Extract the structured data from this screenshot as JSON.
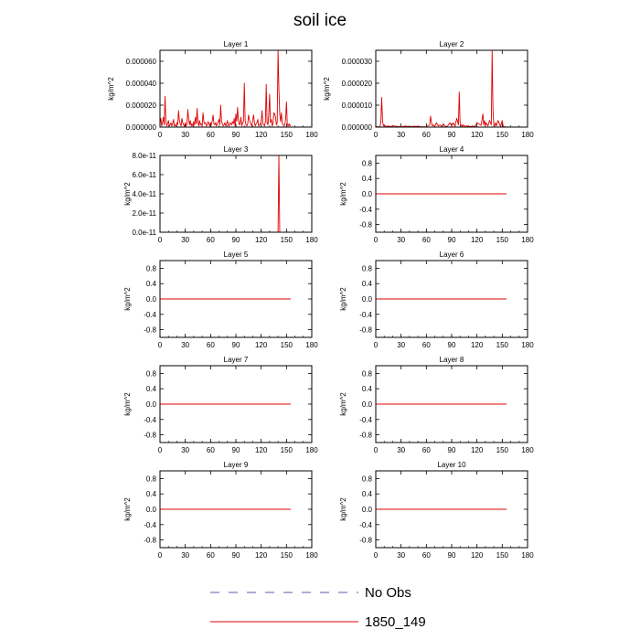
{
  "figure_title": "soil ice",
  "colors": {
    "series_model": "#e00000",
    "series_obs": "#5a5ab4",
    "axis": "#000000"
  },
  "legend": {
    "entries": [
      {
        "label": "No Obs",
        "style": "dashed",
        "color": "#5a5ab4"
      },
      {
        "label": "1850_149",
        "style": "solid",
        "color": "#e00000"
      }
    ]
  },
  "chart_data": [
    {
      "type": "line",
      "title": "Layer 1",
      "ylabel": "kg/m^2",
      "xlim": [
        0,
        180
      ],
      "xticks": [
        "0",
        "30",
        "60",
        "90",
        "120",
        "150",
        "180"
      ],
      "ylim": [
        0,
        7e-05
      ],
      "yticks": [
        0,
        2e-05,
        4e-05,
        6e-05
      ],
      "ytick_labels": [
        "0.000000",
        "0.000020",
        "0.000040",
        "0.000060"
      ],
      "series": [
        {
          "name": "1850_149",
          "x": [
            0,
            1,
            2,
            3,
            4,
            5,
            6,
            7,
            8,
            9,
            10,
            11,
            12,
            13,
            14,
            15,
            16,
            17,
            18,
            19,
            20,
            21,
            22,
            23,
            24,
            25,
            26,
            27,
            28,
            29,
            30,
            31,
            32,
            33,
            34,
            35,
            36,
            37,
            38,
            39,
            40,
            41,
            42,
            43,
            44,
            45,
            46,
            47,
            48,
            49,
            50,
            51,
            52,
            53,
            54,
            55,
            56,
            57,
            58,
            59,
            60,
            61,
            62,
            63,
            64,
            65,
            66,
            67,
            68,
            69,
            70,
            71,
            72,
            73,
            74,
            75,
            76,
            77,
            78,
            79,
            80,
            81,
            82,
            83,
            84,
            85,
            86,
            87,
            88,
            89,
            90,
            91,
            92,
            93,
            94,
            95,
            96,
            97,
            98,
            99,
            100,
            101,
            102,
            103,
            104,
            105,
            106,
            107,
            108,
            109,
            110,
            111,
            112,
            113,
            114,
            115,
            116,
            117,
            118,
            119,
            120,
            121,
            122,
            123,
            124,
            125,
            126,
            127,
            128,
            129,
            130,
            131,
            132,
            133,
            134,
            135,
            136,
            137,
            138,
            139,
            140,
            141,
            142,
            143,
            144,
            145,
            146,
            147,
            148,
            149,
            150,
            151,
            152,
            153,
            154,
            155
          ],
          "values": [
            3e-06,
            8e-06,
            1e-06,
            4e-06,
            9e-06,
            2e-06,
            2.8e-05,
            5e-06,
            1e-06,
            3e-06,
            6e-06,
            1e-06,
            2e-06,
            4e-06,
            1e-06,
            3e-06,
            7e-06,
            1e-06,
            2e-06,
            1e-06,
            4e-06,
            2e-06,
            1.5e-05,
            6e-06,
            3e-06,
            1e-06,
            8e-06,
            4e-06,
            2e-06,
            1e-06,
            4e-06,
            1e-06,
            3e-06,
            1.6e-05,
            7e-06,
            2e-06,
            6e-06,
            1e-06,
            3e-06,
            1e-06,
            5e-06,
            2e-06,
            9e-06,
            3e-06,
            1.7e-05,
            4e-06,
            1e-06,
            6e-06,
            2e-06,
            3e-06,
            1e-06,
            1.3e-05,
            5e-06,
            3e-06,
            4e-06,
            1e-06,
            2e-06,
            5e-06,
            3e-06,
            1e-06,
            4e-06,
            2e-06,
            6e-06,
            1.1e-05,
            3e-06,
            2e-06,
            4e-06,
            1e-06,
            3e-06,
            5e-06,
            7e-06,
            2e-06,
            2e-05,
            5e-06,
            3e-06,
            1e-06,
            2e-06,
            4e-06,
            1e-06,
            3e-06,
            6e-06,
            2e-06,
            1e-06,
            4e-06,
            3e-06,
            2e-06,
            5e-06,
            3e-06,
            8e-06,
            1e-06,
            1.2e-05,
            5e-06,
            1.8e-05,
            7e-06,
            2e-06,
            3e-06,
            9e-06,
            1e-06,
            4e-06,
            5e-06,
            4e-05,
            6e-06,
            2e-06,
            1e-06,
            3e-06,
            1.1e-05,
            7e-06,
            4e-06,
            2e-06,
            1e-06,
            7e-06,
            1.1e-05,
            4e-06,
            1e-06,
            3e-06,
            4e-06,
            7e-06,
            1e-06,
            2e-06,
            3e-06,
            5e-06,
            1.5e-05,
            3e-06,
            2e-06,
            1e-06,
            5e-06,
            3.9e-05,
            4e-06,
            2e-06,
            1.1e-05,
            3e-05,
            4e-06,
            7e-06,
            1e-06,
            3e-06,
            1.3e-05,
            1.2e-05,
            9e-06,
            2e-06,
            4e-06,
            7e-05,
            3.5e-05,
            1.2e-05,
            5e-06,
            1.3e-05,
            4e-06,
            2e-06,
            1e-06,
            2e-06,
            7e-06,
            2.3e-05,
            2e-06,
            1e-06,
            3e-06,
            1e-06,
            2e-06
          ]
        }
      ]
    },
    {
      "type": "line",
      "title": "Layer 2",
      "ylabel": "kg/m^2",
      "xlim": [
        0,
        180
      ],
      "xticks": [
        "0",
        "30",
        "60",
        "90",
        "120",
        "150",
        "180"
      ],
      "ylim": [
        0,
        3.5e-05
      ],
      "yticks": [
        0,
        1e-05,
        2e-05,
        3e-05
      ],
      "ytick_labels": [
        "0.000000",
        "0.000010",
        "0.000020",
        "0.000030"
      ],
      "series": [
        {
          "name": "1850_149",
          "x": [
            0,
            3,
            5,
            6,
            7,
            8,
            9,
            10,
            12,
            15,
            18,
            20,
            25,
            30,
            35,
            40,
            45,
            50,
            55,
            60,
            64,
            65,
            66,
            67,
            68,
            70,
            72,
            74,
            76,
            78,
            80,
            82,
            84,
            86,
            88,
            90,
            92,
            94,
            96,
            98,
            99,
            100,
            101,
            102,
            103,
            104,
            106,
            108,
            110,
            112,
            115,
            118,
            120,
            125,
            127,
            128,
            129,
            130,
            131,
            133,
            135,
            137,
            138,
            139,
            140,
            141,
            142,
            143,
            145,
            148,
            150,
            151,
            152,
            153,
            155
          ],
          "values": [
            1e-07,
            2e-07,
            1e-07,
            2e-06,
            1.35e-05,
            3e-06,
            5e-07,
            1e-06,
            3e-07,
            5e-07,
            2e-07,
            6e-07,
            3e-07,
            1e-07,
            5e-07,
            2e-07,
            4e-07,
            3e-07,
            1e-07,
            2e-07,
            1e-06,
            5e-06,
            2e-06,
            5e-07,
            1e-06,
            3e-07,
            2e-06,
            5e-07,
            1e-06,
            3e-07,
            1.5e-06,
            5e-07,
            2e-07,
            8e-07,
            2e-06,
            5e-07,
            2e-06,
            3e-07,
            4e-06,
            1e-06,
            1.6e-05,
            2e-06,
            5e-07,
            1e-06,
            2e-07,
            1e-06,
            3e-07,
            6e-07,
            3e-07,
            2e-07,
            5e-07,
            3e-07,
            2e-06,
            8e-07,
            6e-06,
            1e-06,
            3e-06,
            5e-07,
            2e-06,
            5e-07,
            3e-06,
            1e-06,
            3.5e-05,
            8e-06,
            1e-06,
            5e-07,
            2e-06,
            5e-07,
            3e-06,
            3e-07,
            3e-06,
            5e-07,
            2e-07,
            1e-07,
            1e-07
          ]
        }
      ]
    },
    {
      "type": "line",
      "title": "Layer 3",
      "ylabel": "kg/m^2",
      "xlim": [
        0,
        180
      ],
      "xticks": [
        "0",
        "30",
        "60",
        "90",
        "120",
        "150",
        "180"
      ],
      "ylim": [
        0,
        8e-11
      ],
      "yticks": [
        0,
        2e-11,
        4e-11,
        6e-11,
        8e-11
      ],
      "ytick_labels": [
        "0.0e-11",
        "2.0e-11",
        "4.0e-11",
        "6.0e-11",
        "8.0e-11"
      ],
      "series": [
        {
          "name": "1850_149",
          "x": [
            0,
            139,
            140,
            141,
            142,
            155
          ],
          "values": [
            0,
            0,
            0,
            8e-11,
            0,
            0
          ]
        }
      ]
    },
    {
      "type": "line",
      "title": "Layer 4",
      "ylabel": "kg/m^2",
      "xlim": [
        0,
        180
      ],
      "xticks": [
        "0",
        "30",
        "60",
        "90",
        "120",
        "150",
        "180"
      ],
      "ylim": [
        -1,
        1
      ],
      "yticks": [
        -0.8,
        -0.4,
        0.0,
        0.4,
        0.8
      ],
      "ytick_labels": [
        "-0.8",
        "-0.4",
        "0.0",
        "0.4",
        "0.8"
      ],
      "series": [
        {
          "name": "1850_149",
          "x": [
            0,
            155
          ],
          "values": [
            0,
            0
          ]
        }
      ]
    },
    {
      "type": "line",
      "title": "Layer 5",
      "ylabel": "kg/m^2",
      "xlim": [
        0,
        180
      ],
      "xticks": [
        "0",
        "30",
        "60",
        "90",
        "120",
        "150",
        "180"
      ],
      "ylim": [
        -1,
        1
      ],
      "yticks": [
        -0.8,
        -0.4,
        0.0,
        0.4,
        0.8
      ],
      "ytick_labels": [
        "-0.8",
        "-0.4",
        "0.0",
        "0.4",
        "0.8"
      ],
      "series": [
        {
          "name": "1850_149",
          "x": [
            0,
            155
          ],
          "values": [
            0,
            0
          ]
        }
      ]
    },
    {
      "type": "line",
      "title": "Layer 6",
      "ylabel": "kg/m^2",
      "xlim": [
        0,
        180
      ],
      "xticks": [
        "0",
        "30",
        "60",
        "90",
        "120",
        "150",
        "180"
      ],
      "ylim": [
        -1,
        1
      ],
      "yticks": [
        -0.8,
        -0.4,
        0.0,
        0.4,
        0.8
      ],
      "ytick_labels": [
        "-0.8",
        "-0.4",
        "0.0",
        "0.4",
        "0.8"
      ],
      "series": [
        {
          "name": "1850_149",
          "x": [
            0,
            155
          ],
          "values": [
            0,
            0
          ]
        }
      ]
    },
    {
      "type": "line",
      "title": "Layer 7",
      "ylabel": "kg/m^2",
      "xlim": [
        0,
        180
      ],
      "xticks": [
        "0",
        "30",
        "60",
        "90",
        "120",
        "150",
        "180"
      ],
      "ylim": [
        -1,
        1
      ],
      "yticks": [
        -0.8,
        -0.4,
        0.0,
        0.4,
        0.8
      ],
      "ytick_labels": [
        "-0.8",
        "-0.4",
        "0.0",
        "0.4",
        "0.8"
      ],
      "series": [
        {
          "name": "1850_149",
          "x": [
            0,
            155
          ],
          "values": [
            0,
            0
          ]
        }
      ]
    },
    {
      "type": "line",
      "title": "Layer 8",
      "ylabel": "kg/m^2",
      "xlim": [
        0,
        180
      ],
      "xticks": [
        "0",
        "30",
        "60",
        "90",
        "120",
        "150",
        "180"
      ],
      "ylim": [
        -1,
        1
      ],
      "yticks": [
        -0.8,
        -0.4,
        0.0,
        0.4,
        0.8
      ],
      "ytick_labels": [
        "-0.8",
        "-0.4",
        "0.0",
        "0.4",
        "0.8"
      ],
      "series": [
        {
          "name": "1850_149",
          "x": [
            0,
            155
          ],
          "values": [
            0,
            0
          ]
        }
      ]
    },
    {
      "type": "line",
      "title": "Layer 9",
      "ylabel": "kg/m^2",
      "xlim": [
        0,
        180
      ],
      "xticks": [
        "0",
        "30",
        "60",
        "90",
        "120",
        "150",
        "180"
      ],
      "ylim": [
        -1,
        1
      ],
      "yticks": [
        -0.8,
        -0.4,
        0.0,
        0.4,
        0.8
      ],
      "ytick_labels": [
        "-0.8",
        "-0.4",
        "0.0",
        "0.4",
        "0.8"
      ],
      "series": [
        {
          "name": "1850_149",
          "x": [
            0,
            155
          ],
          "values": [
            0,
            0
          ]
        }
      ]
    },
    {
      "type": "line",
      "title": "Layer 10",
      "ylabel": "kg/m^2",
      "xlim": [
        0,
        180
      ],
      "xticks": [
        "0",
        "30",
        "60",
        "90",
        "120",
        "150",
        "180"
      ],
      "ylim": [
        -1,
        1
      ],
      "yticks": [
        -0.8,
        -0.4,
        0.0,
        0.4,
        0.8
      ],
      "ytick_labels": [
        "-0.8",
        "-0.4",
        "0.0",
        "0.4",
        "0.8"
      ],
      "series": [
        {
          "name": "1850_149",
          "x": [
            0,
            155
          ],
          "values": [
            0,
            0
          ]
        }
      ]
    }
  ]
}
